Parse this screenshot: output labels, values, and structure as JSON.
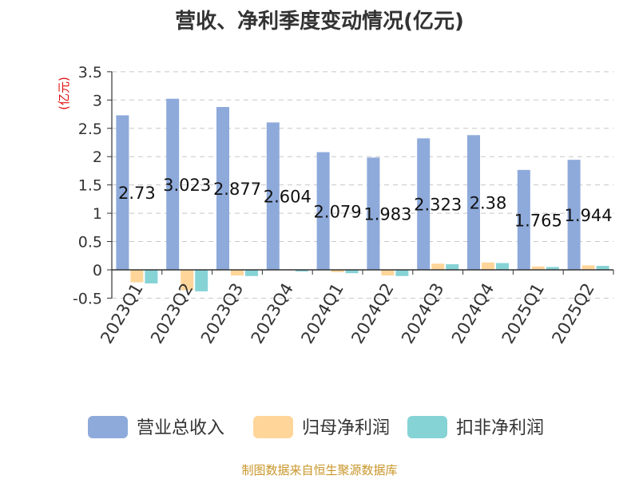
{
  "chart_data": {
    "type": "bar",
    "title": "营收、净利季度变动情况(亿元)",
    "ylabel": "(亿元)",
    "ylim": [
      -0.5,
      3.5
    ],
    "yticks": [
      "3.5",
      "3",
      "2.5",
      "2",
      "1.5",
      "1",
      "0.5",
      "0",
      "-0.5"
    ],
    "ytick_values": [
      3.5,
      3,
      2.5,
      2,
      1.5,
      1,
      0.5,
      0,
      -0.5
    ],
    "categories": [
      "2023Q1",
      "2023Q2",
      "2023Q3",
      "2023Q4",
      "2024Q1",
      "2024Q2",
      "2024Q3",
      "2024Q4",
      "2025Q1",
      "2025Q2"
    ],
    "series": [
      {
        "name": "营业总收入",
        "color": "#8eaadb",
        "values": [
          2.73,
          3.023,
          2.877,
          2.604,
          2.079,
          1.983,
          2.323,
          2.38,
          1.765,
          1.944
        ],
        "labels": [
          "2.73",
          "3.023",
          "2.877",
          "2.604",
          "2.079",
          "1.983",
          "2.323",
          "2.38",
          "1.765",
          "1.944"
        ]
      },
      {
        "name": "归母净利润",
        "color": "#ffd59a",
        "values": [
          -0.22,
          -0.36,
          -0.1,
          0.01,
          -0.04,
          -0.1,
          0.11,
          0.13,
          0.06,
          0.08
        ]
      },
      {
        "name": "扣非净利润",
        "color": "#86d3d6",
        "values": [
          -0.24,
          -0.38,
          -0.11,
          -0.03,
          -0.06,
          -0.11,
          0.1,
          0.12,
          0.05,
          0.07
        ]
      }
    ],
    "grid": true,
    "legend_position": "bottom"
  },
  "source": "制图数据来自恒生聚源数据库"
}
